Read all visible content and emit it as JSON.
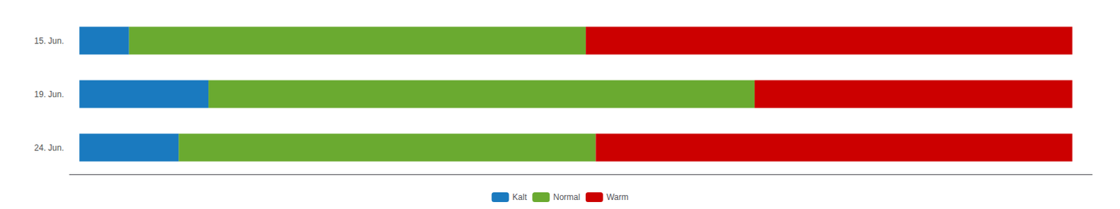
{
  "chart_data": {
    "type": "bar",
    "orientation": "horizontal",
    "stacked": true,
    "categories": [
      "15. Jun.",
      "19. Jun.",
      "24. Jun."
    ],
    "series": [
      {
        "name": "Kalt",
        "color": "#1a7abf",
        "values": [
          5,
          13,
          10
        ]
      },
      {
        "name": "Normal",
        "color": "#6aaa30",
        "values": [
          46,
          55,
          42
        ]
      },
      {
        "name": "Warm",
        "color": "#cc0000",
        "values": [
          49,
          32,
          48
        ]
      }
    ],
    "xlim": [
      -1,
      102
    ],
    "xticks": [],
    "tick_labels": "y",
    "grid": false,
    "legend": "bottom"
  }
}
